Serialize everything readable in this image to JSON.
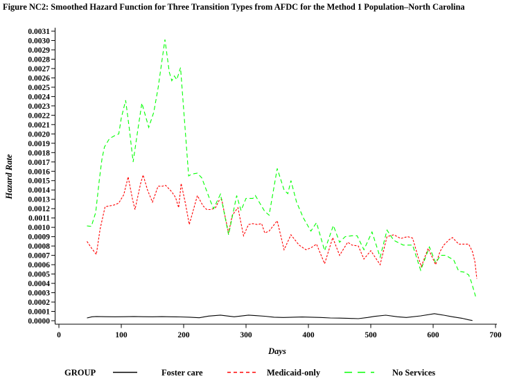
{
  "chart_data": {
    "type": "line",
    "title": "Figure NC2:  Smoothed Hazard Function for Three Transition Types from AFDC for the Method 1 Population–North Carolina",
    "xlabel": "Days",
    "ylabel": "Hazard Rate",
    "xlim": [
      0,
      700
    ],
    "ylim": [
      0,
      0.0031
    ],
    "grid": false,
    "x_ticks": [
      0,
      100,
      200,
      300,
      400,
      500,
      600,
      700
    ],
    "y_tick_step": 0.0001,
    "y_ticks": [
      "0.0000",
      "0.0001",
      "0.0002",
      "0.0003",
      "0.0004",
      "0.0005",
      "0.0006",
      "0.0007",
      "0.0008",
      "0.0009",
      "0.0010",
      "0.0011",
      "0.0012",
      "0.0013",
      "0.0014",
      "0.0015",
      "0.0016",
      "0.0017",
      "0.0018",
      "0.0019",
      "0.0020",
      "0.0021",
      "0.0022",
      "0.0023",
      "0.0024",
      "0.0025",
      "0.0026",
      "0.0027",
      "0.0028",
      "0.0029",
      "0.0030",
      "0.0031"
    ],
    "legend": {
      "label": "GROUP",
      "position": "bottom"
    },
    "series": [
      {
        "name": "Foster care",
        "color": "#000000",
        "dash": "solid",
        "points": [
          [
            45,
            3e-05
          ],
          [
            53,
            4.2e-05
          ],
          [
            60,
            4.5e-05
          ],
          [
            75,
            4.3e-05
          ],
          [
            90,
            4.2e-05
          ],
          [
            105,
            4.3e-05
          ],
          [
            120,
            4.5e-05
          ],
          [
            135,
            4.3e-05
          ],
          [
            150,
            4.2e-05
          ],
          [
            165,
            4.4e-05
          ],
          [
            180,
            4.2e-05
          ],
          [
            195,
            4.1e-05
          ],
          [
            210,
            3.8e-05
          ],
          [
            225,
            3.2e-05
          ],
          [
            240,
            5e-05
          ],
          [
            259,
            6e-05
          ],
          [
            281,
            4.2e-05
          ],
          [
            304,
            6e-05
          ],
          [
            315,
            5.5e-05
          ],
          [
            330,
            4.8e-05
          ],
          [
            345,
            3.8e-05
          ],
          [
            360,
            3.5e-05
          ],
          [
            375,
            3.8e-05
          ],
          [
            390,
            4e-05
          ],
          [
            405,
            3.8e-05
          ],
          [
            420,
            3.5e-05
          ],
          [
            435,
            3e-05
          ],
          [
            450,
            2.8e-05
          ],
          [
            465,
            2.5e-05
          ],
          [
            480,
            2.2e-05
          ],
          [
            495,
            3.5e-05
          ],
          [
            506,
            4.7e-05
          ],
          [
            524,
            5.9e-05
          ],
          [
            543,
            4.2e-05
          ],
          [
            557,
            3.5e-05
          ],
          [
            580,
            5.2e-05
          ],
          [
            602,
            7.6e-05
          ],
          [
            617,
            5.9e-05
          ],
          [
            631,
            4.2e-05
          ],
          [
            646,
            2.7e-05
          ],
          [
            657,
            1e-05
          ],
          [
            663,
            2e-06
          ]
        ]
      },
      {
        "name": "Medicaid-only",
        "color": "#ff0000",
        "dash": "short-dash",
        "points": [
          [
            45,
            0.00085
          ],
          [
            52,
            0.00078
          ],
          [
            60,
            0.00071
          ],
          [
            66,
            0.00098
          ],
          [
            74,
            0.00122
          ],
          [
            82,
            0.00123
          ],
          [
            89,
            0.00124
          ],
          [
            96,
            0.00126
          ],
          [
            104,
            0.00135
          ],
          [
            111,
            0.00154
          ],
          [
            118,
            0.0013
          ],
          [
            122,
            0.00119
          ],
          [
            131,
            0.00147
          ],
          [
            135,
            0.00156
          ],
          [
            142,
            0.0014
          ],
          [
            150,
            0.00127
          ],
          [
            159,
            0.00144
          ],
          [
            166,
            0.00144
          ],
          [
            171,
            0.00145
          ],
          [
            181,
            0.00138
          ],
          [
            187,
            0.00132
          ],
          [
            192,
            0.00121
          ],
          [
            196,
            0.00147
          ],
          [
            203,
            0.00125
          ],
          [
            209,
            0.00103
          ],
          [
            222,
            0.00134
          ],
          [
            231,
            0.00123
          ],
          [
            237,
            0.00119
          ],
          [
            244,
            0.00119
          ],
          [
            251,
            0.00121
          ],
          [
            257,
            0.00129
          ],
          [
            261,
            0.0013
          ],
          [
            266,
            0.00113
          ],
          [
            272,
            0.00094
          ],
          [
            278,
            0.00113
          ],
          [
            287,
            0.00121
          ],
          [
            296,
            0.00091
          ],
          [
            304,
            0.00103
          ],
          [
            311,
            0.00104
          ],
          [
            318,
            0.00103
          ],
          [
            325,
            0.00104
          ],
          [
            330,
            0.00094
          ],
          [
            337,
            0.00096
          ],
          [
            350,
            0.00107
          ],
          [
            361,
            0.00076
          ],
          [
            372,
            0.00092
          ],
          [
            385,
            0.00081
          ],
          [
            396,
            0.00076
          ],
          [
            404,
            0.00078
          ],
          [
            413,
            0.00082
          ],
          [
            426,
            0.00061
          ],
          [
            439,
            0.00089
          ],
          [
            450,
            0.0007
          ],
          [
            463,
            0.00084
          ],
          [
            470,
            0.00081
          ],
          [
            480,
            0.0008
          ],
          [
            489,
            0.00066
          ],
          [
            500,
            0.00075
          ],
          [
            515,
            0.0006
          ],
          [
            526,
            0.0009
          ],
          [
            537,
            0.00092
          ],
          [
            548,
            0.00088
          ],
          [
            559,
            0.0009
          ],
          [
            567,
            0.000885
          ],
          [
            576,
            0.00068
          ],
          [
            581,
            0.00058
          ],
          [
            592,
            0.000775
          ],
          [
            604,
            0.0006
          ],
          [
            611,
            0.00074
          ],
          [
            617,
            0.00081
          ],
          [
            626,
            0.00087
          ],
          [
            631,
            0.00089
          ],
          [
            641,
            0.00082
          ],
          [
            650,
            0.00082
          ],
          [
            657,
            0.00082
          ],
          [
            663,
            0.00074
          ],
          [
            667,
            0.00063
          ],
          [
            670,
            0.00045
          ]
        ]
      },
      {
        "name": "No Services",
        "color": "#00ff00",
        "dash": "long-dash",
        "points": [
          [
            45,
            0.001015
          ],
          [
            52,
            0.00101
          ],
          [
            59,
            0.00116
          ],
          [
            65,
            0.00152
          ],
          [
            69,
            0.00173
          ],
          [
            73,
            0.00186
          ],
          [
            81,
            0.00195
          ],
          [
            89,
            0.00198
          ],
          [
            96,
            0.002
          ],
          [
            100,
            0.00217
          ],
          [
            107,
            0.00236
          ],
          [
            113,
            0.00205
          ],
          [
            119,
            0.0017
          ],
          [
            126,
            0.00202
          ],
          [
            133,
            0.00233
          ],
          [
            144,
            0.00207
          ],
          [
            152,
            0.00223
          ],
          [
            159,
            0.00249
          ],
          [
            170,
            0.00301
          ],
          [
            177,
            0.00266
          ],
          [
            181,
            0.00257
          ],
          [
            185,
            0.00262
          ],
          [
            189,
            0.00258
          ],
          [
            195,
            0.00271
          ],
          [
            208,
            0.00155
          ],
          [
            213,
            0.00157
          ],
          [
            222,
            0.00158
          ],
          [
            229,
            0.00153
          ],
          [
            243,
            0.00128
          ],
          [
            248,
            0.0012
          ],
          [
            259,
            0.001355
          ],
          [
            272,
            0.00092
          ],
          [
            285,
            0.00134
          ],
          [
            292,
            0.00118
          ],
          [
            300,
            0.00131
          ],
          [
            311,
            0.00131
          ],
          [
            315,
            0.00134
          ],
          [
            322,
            0.00126
          ],
          [
            330,
            0.00117
          ],
          [
            337,
            0.00113
          ],
          [
            350,
            0.00163
          ],
          [
            361,
            0.0014
          ],
          [
            367,
            0.00136
          ],
          [
            372,
            0.0015
          ],
          [
            381,
            0.00127
          ],
          [
            392,
            0.0011
          ],
          [
            404,
            0.00096
          ],
          [
            413,
            0.00105
          ],
          [
            426,
            0.00075
          ],
          [
            440,
            0.00102
          ],
          [
            450,
            0.00084
          ],
          [
            459,
            0.0009
          ],
          [
            470,
            0.00091
          ],
          [
            478,
            0.00091
          ],
          [
            489,
            0.00076
          ],
          [
            502,
            0.00095
          ],
          [
            515,
            0.00068
          ],
          [
            526,
            0.00097
          ],
          [
            537,
            0.00086
          ],
          [
            552,
            0.00081
          ],
          [
            567,
            0.00081
          ],
          [
            580,
            0.00054
          ],
          [
            594,
            0.00079
          ],
          [
            604,
            0.00062
          ],
          [
            612,
            0.0007
          ],
          [
            620,
            0.0007
          ],
          [
            633,
            0.00065
          ],
          [
            641,
            0.00053
          ],
          [
            650,
            0.00052
          ],
          [
            657,
            0.00049
          ],
          [
            661,
            0.00042
          ],
          [
            665,
            0.00033
          ],
          [
            668,
            0.00026
          ]
        ]
      }
    ]
  }
}
